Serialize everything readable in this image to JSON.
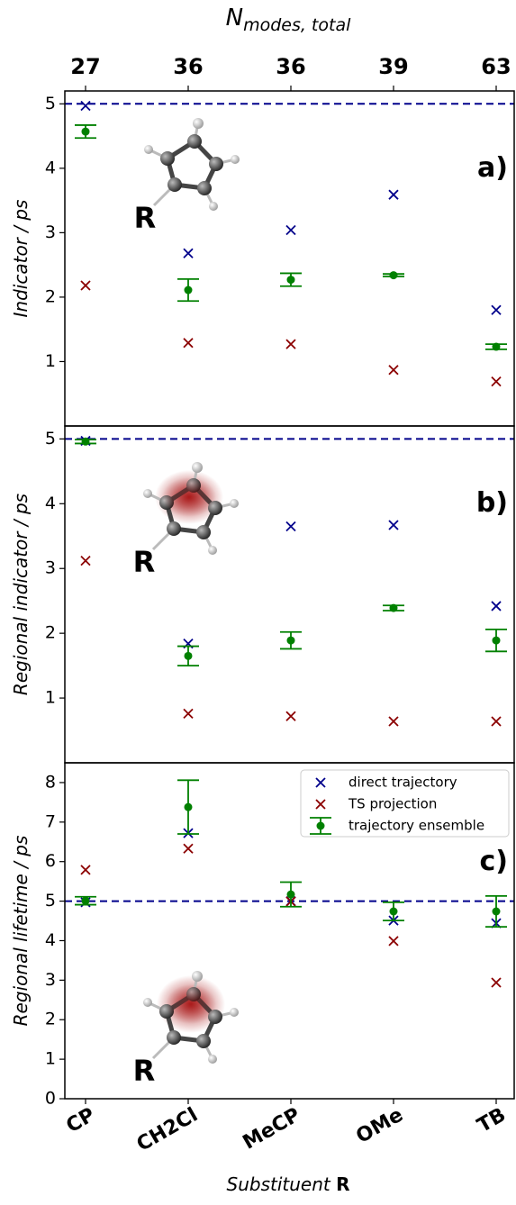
{
  "chart_data": [
    {
      "type": "scatter",
      "panel_label": "a)",
      "ylabel": "Indicator / ps",
      "x2label": "N",
      "x2label_sub": "modes, total",
      "x2_categories": [
        "27",
        "36",
        "36",
        "39",
        "63"
      ],
      "inset_label": "R",
      "ylim": [
        0,
        5.2
      ],
      "yticks": [
        1,
        2,
        3,
        4,
        5
      ],
      "hline": 5,
      "hline_color": "#00008b",
      "series": [
        {
          "color": "#00008b",
          "marker": "x",
          "values": [
            4.97,
            2.68,
            3.04,
            3.59,
            1.8
          ]
        },
        {
          "color": "#8b0000",
          "marker": "x",
          "values": [
            2.18,
            1.29,
            1.27,
            0.87,
            0.69
          ]
        },
        {
          "color": "#008000",
          "marker": "o",
          "values": [
            4.57,
            2.11,
            2.27,
            2.34,
            1.23
          ],
          "errors": [
            0.1,
            0.17,
            0.1,
            0.02,
            0.04
          ]
        }
      ]
    },
    {
      "type": "scatter",
      "panel_label": "b)",
      "ylabel": "Regional indicator / ps",
      "inset_label": "R",
      "ylim": [
        0,
        5.2
      ],
      "yticks": [
        1,
        2,
        3,
        4,
        5
      ],
      "hline": 5,
      "hline_color": "#00008b",
      "series": [
        {
          "color": "#00008b",
          "marker": "x",
          "values": [
            4.97,
            1.84,
            3.65,
            3.67,
            2.42
          ]
        },
        {
          "color": "#8b0000",
          "marker": "x",
          "values": [
            3.12,
            0.76,
            0.72,
            0.64,
            0.64
          ]
        },
        {
          "color": "#008000",
          "marker": "o",
          "values": [
            4.96,
            1.65,
            1.89,
            2.39,
            1.89
          ],
          "errors": [
            0.03,
            0.15,
            0.13,
            0.04,
            0.17
          ]
        }
      ]
    },
    {
      "type": "scatter",
      "panel_label": "c)",
      "ylabel": "Regional lifetime / ps",
      "xlabel": "Substituent",
      "xlabel_symbol": "R",
      "categories": [
        "CP",
        "CH2Cl",
        "MeCP",
        "OMe",
        "TB"
      ],
      "inset_label": "R",
      "ylim": [
        0,
        8.5
      ],
      "yticks": [
        0,
        1,
        2,
        3,
        4,
        5,
        6,
        7,
        8
      ],
      "hline": 5,
      "hline_color": "#00008b",
      "legend": "upper right",
      "series": [
        {
          "name": "direct trajectory",
          "color": "#00008b",
          "marker": "x",
          "values": [
            4.97,
            6.72,
            5.0,
            4.51,
            4.44
          ]
        },
        {
          "name": "TS projection",
          "color": "#8b0000",
          "marker": "x",
          "values": [
            5.79,
            6.33,
            4.99,
            3.99,
            2.94
          ]
        },
        {
          "name": "trajectory ensemble",
          "color": "#008000",
          "marker": "o",
          "values": [
            5.01,
            7.38,
            5.17,
            4.74,
            4.74
          ],
          "errors": [
            0.1,
            0.68,
            0.31,
            0.23,
            0.39
          ]
        }
      ]
    }
  ]
}
